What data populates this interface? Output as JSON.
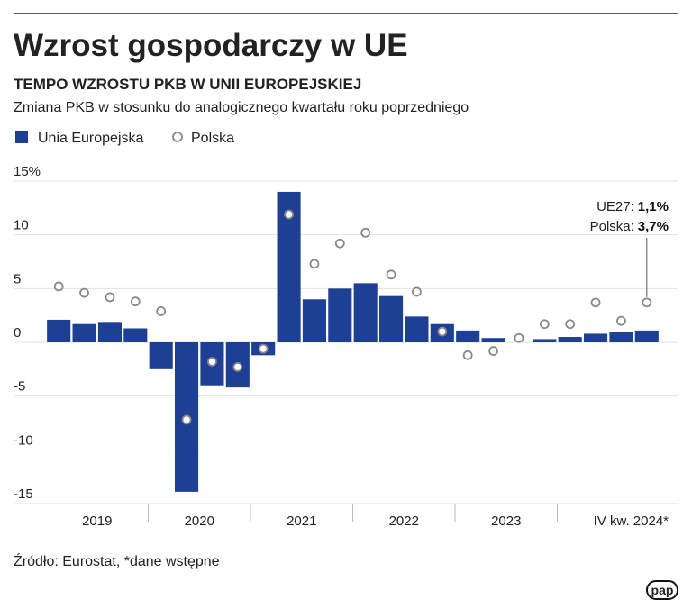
{
  "chart_data": {
    "type": "bar_dot",
    "title": "Wzrost gospodarczy w UE",
    "subtitle": "TEMPO WZROSTU PKB W UNII EUROPEJSKIEJ",
    "description": "Zmiana PKB w stosunku do analogicznego kwartału roku poprzedniego",
    "categories": [
      null,
      null,
      null,
      null,
      null,
      null,
      null,
      null,
      null,
      null,
      null,
      null,
      null,
      null,
      null,
      null,
      null,
      null,
      null,
      null,
      null,
      null,
      null,
      null
    ],
    "x_group_labels": [
      "2019",
      "2020",
      "2021",
      "2022",
      "2023",
      "IV kw. 2024*"
    ],
    "series": [
      {
        "name": "Unia Europejska",
        "color": "#1d3f94",
        "mark": "bar",
        "values": [
          2.1,
          1.7,
          1.9,
          1.3,
          -2.5,
          -13.9,
          -4.0,
          -4.2,
          -1.2,
          14.0,
          4.0,
          5.0,
          5.5,
          4.3,
          2.4,
          1.7,
          1.1,
          0.4,
          0.0,
          0.3,
          0.5,
          0.8,
          1.0,
          1.1
        ]
      },
      {
        "name": "Polska",
        "color": "#888888",
        "mark": "dot",
        "values": [
          5.2,
          4.6,
          4.2,
          3.8,
          2.9,
          -7.2,
          -1.8,
          -2.3,
          -0.6,
          11.9,
          7.3,
          9.2,
          10.2,
          6.3,
          4.7,
          1.0,
          -1.2,
          -0.8,
          0.4,
          1.7,
          1.7,
          3.7,
          2.0,
          3.7
        ]
      }
    ],
    "annotations": [
      {
        "label": "UE27:",
        "value_label": "1,1%",
        "value": 1.1
      },
      {
        "label": "Polska:",
        "value_label": "3,7%",
        "value": 3.7
      }
    ],
    "ylim": [
      -15,
      15
    ],
    "yticks": [
      -15,
      -10,
      -5,
      0,
      5,
      {
        "value": 15,
        "label": "15%"
      },
      10
    ],
    "grid": true,
    "source": "Źródło: Eurostat, *dane wstępne",
    "logo": "pap"
  }
}
